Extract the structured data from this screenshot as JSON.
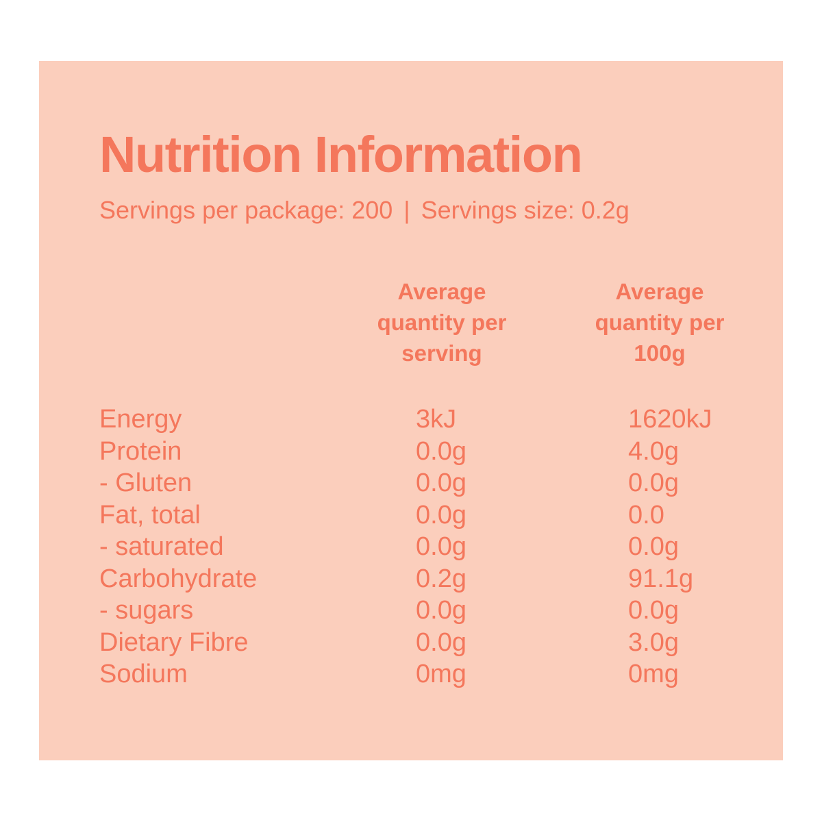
{
  "page": {
    "background_color": "#ffffff"
  },
  "card": {
    "background_color": "#fbcebc",
    "text_color": "#f4775c",
    "title": "Nutrition Information",
    "servings_line": {
      "per_package_text": "Servings per package: 200",
      "separator": "|",
      "size_text": "Servings size: 0.2g"
    },
    "columns": {
      "serving_header_lines": [
        "Average",
        "quantity per",
        "serving"
      ],
      "per100g_header_lines": [
        "Average",
        "quantity per",
        "100g"
      ]
    },
    "rows": [
      {
        "label": "Energy",
        "per_serving": "3kJ",
        "per_100g": "1620kJ"
      },
      {
        "label": "Protein",
        "per_serving": "0.0g",
        "per_100g": "4.0g"
      },
      {
        "label": "- Gluten",
        "per_serving": "0.0g",
        "per_100g": "0.0g"
      },
      {
        "label": "Fat, total",
        "per_serving": "0.0g",
        "per_100g": "0.0"
      },
      {
        "label": "- saturated",
        "per_serving": "0.0g",
        "per_100g": "0.0g"
      },
      {
        "label": "Carbohydrate",
        "per_serving": "0.2g",
        "per_100g": "91.1g"
      },
      {
        "label": "- sugars",
        "per_serving": "0.0g",
        "per_100g": "0.0g"
      },
      {
        "label": "Dietary Fibre",
        "per_serving": "0.0g",
        "per_100g": "3.0g"
      },
      {
        "label": "Sodium",
        "per_serving": "0mg",
        "per_100g": "0mg"
      }
    ]
  }
}
